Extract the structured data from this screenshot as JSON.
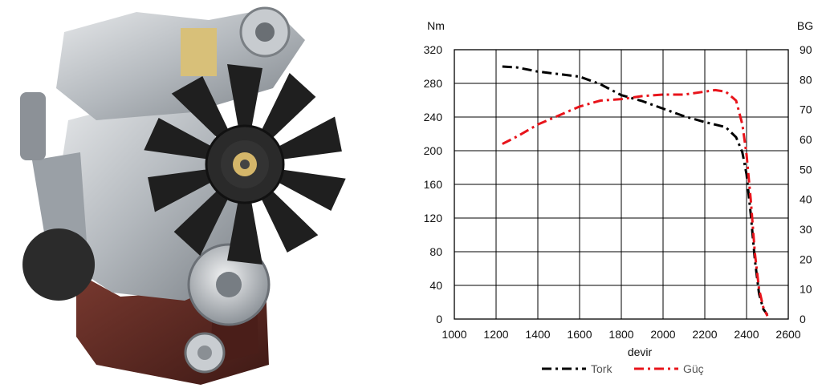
{
  "colors": {
    "torque": "#000000",
    "power": "#e8141b",
    "engine_block": "#5a2a23",
    "engine_metal": "#b8bcc0",
    "fan": "#1e1e1e"
  },
  "chart_data": {
    "type": "line",
    "x_label": "devir",
    "y_left_label": "Nm",
    "y_right_label": "BG",
    "x_ticks": [
      1000,
      1200,
      1400,
      1600,
      1800,
      2000,
      2200,
      2400,
      2600
    ],
    "y_left_ticks": [
      0,
      40,
      80,
      120,
      160,
      200,
      240,
      280,
      320
    ],
    "y_right_ticks": [
      0,
      10,
      20,
      30,
      40,
      50,
      60,
      70,
      80,
      90
    ],
    "x_range": [
      1000,
      2600
    ],
    "y_left_range": [
      0,
      320
    ],
    "y_right_range": [
      0,
      90
    ],
    "grid": true,
    "legend_position": "bottom-center",
    "series": [
      {
        "name": "Tork",
        "axis": "left",
        "line_style": "dash-dot",
        "x": [
          1230,
          1300,
          1400,
          1500,
          1600,
          1700,
          1800,
          1900,
          2000,
          2100,
          2200,
          2300,
          2350,
          2380,
          2400,
          2420,
          2440,
          2460,
          2480,
          2500
        ],
        "y": [
          300,
          299,
          294,
          291,
          288,
          279,
          266,
          259,
          250,
          241,
          234,
          228,
          216,
          198,
          172,
          125,
          70,
          30,
          12,
          5
        ]
      },
      {
        "name": "Güç",
        "axis": "right",
        "line_style": "dash-dot",
        "x": [
          1230,
          1300,
          1400,
          1500,
          1600,
          1700,
          1800,
          1900,
          2000,
          2100,
          2200,
          2250,
          2300,
          2350,
          2380,
          2400,
          2420,
          2440,
          2460,
          2480,
          2500
        ],
        "y": [
          58.5,
          61,
          65,
          68,
          71,
          73,
          73.5,
          74.5,
          75,
          75,
          76,
          76.5,
          76,
          73,
          65,
          55,
          40,
          22,
          10,
          4,
          1
        ]
      }
    ]
  }
}
